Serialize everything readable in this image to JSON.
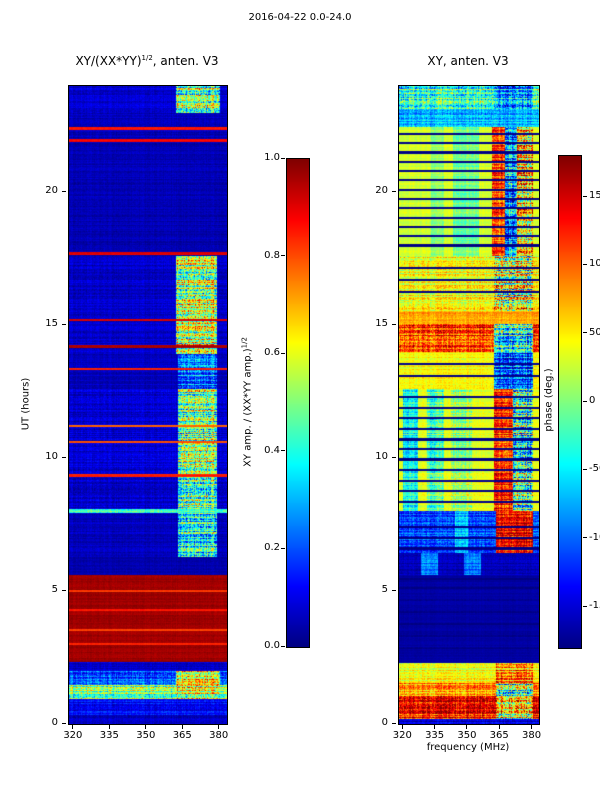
{
  "figure": {
    "title": "2016-04-22 0.0-24.0"
  },
  "chart_data": [
    {
      "type": "heatmap",
      "title_parts": {
        "pre": "XY/(XX*YY)",
        "sup": "1/2",
        "post": ", anten. V3"
      },
      "xlabel": "",
      "ylabel": "UT (hours)",
      "x_range": [
        318,
        383
      ],
      "y_range": [
        0,
        24
      ],
      "xticks": [
        320,
        335,
        350,
        365,
        380
      ],
      "xtick_labels": [
        "320",
        "335",
        "350",
        "365",
        "380"
      ],
      "yticks": [
        0,
        5,
        10,
        15,
        20
      ],
      "ytick_labels": [
        "0",
        "5",
        "10",
        "15",
        "20"
      ],
      "value_scale": {
        "min": 0,
        "max": 1
      },
      "colorbar": {
        "label_parts": {
          "pre": "XY amp. / (XX*YY amp.)",
          "sup": "1/2"
        },
        "range": [
          0,
          1
        ],
        "ticks": [
          1.0,
          0.8,
          0.6,
          0.4,
          0.2,
          0.0
        ],
        "tick_labels": [
          "1.0",
          "0.8",
          "0.6",
          "0.4",
          "0.2",
          "0.0"
        ]
      },
      "colormap": "jet",
      "bands": [
        {
          "t": [
            0,
            0.35
          ],
          "v": 0.07,
          "n": 0.05
        },
        {
          "t": [
            0.35,
            0.95
          ],
          "v": 0.12,
          "n": 0.08
        },
        {
          "t": [
            0.95,
            1.45
          ],
          "v": 0.5,
          "n": 0.22,
          "cols": [
            {
              "f": [
                362,
                380
              ],
              "v": 0.6,
              "n": 0.3
            }
          ]
        },
        {
          "t": [
            1.45,
            2.0
          ],
          "v": 0.22,
          "n": 0.15,
          "cols": [
            {
              "f": [
                362,
                380
              ],
              "v": 0.65,
              "n": 0.3
            }
          ]
        },
        {
          "t": [
            2.0,
            2.35
          ],
          "v": 0.08,
          "n": 0.05
        },
        {
          "t": [
            2.35,
            5.62
          ],
          "v": 0.97,
          "n": 0.025
        },
        {
          "t": [
            5.62,
            6.3
          ],
          "v": 0.05,
          "n": 0.03
        },
        {
          "t": [
            6.3,
            7.92
          ],
          "v": 0.06,
          "n": 0.04,
          "cols": [
            {
              "f": [
                363,
                379
              ],
              "v": 0.4,
              "n": 0.3
            }
          ]
        },
        {
          "t": [
            7.92,
            8.1
          ],
          "v": 0.45,
          "n": 0.12
        },
        {
          "t": [
            8.1,
            12.6
          ],
          "v": 0.08,
          "n": 0.06,
          "cols": [
            {
              "f": [
                363,
                379
              ],
              "v": 0.5,
              "n": 0.33
            }
          ]
        },
        {
          "t": [
            12.6,
            13.9
          ],
          "v": 0.06,
          "n": 0.04,
          "cols": [
            {
              "f": [
                363,
                379
              ],
              "v": 0.25,
              "n": 0.2
            }
          ]
        },
        {
          "t": [
            13.9,
            17.6
          ],
          "v": 0.07,
          "n": 0.05,
          "cols": [
            {
              "f": [
                362,
                379
              ],
              "v": 0.55,
              "n": 0.33
            }
          ]
        },
        {
          "t": [
            17.6,
            21.9
          ],
          "v": 0.05,
          "n": 0.035
        },
        {
          "t": [
            21.9,
            23.0
          ],
          "v": 0.06,
          "n": 0.04
        },
        {
          "t": [
            23.0,
            24.01
          ],
          "v": 0.08,
          "n": 0.05,
          "cols": [
            {
              "f": [
                362,
                380
              ],
              "v": 0.5,
              "n": 0.33
            }
          ]
        }
      ],
      "hlines": [
        [
          3.0,
          0.85
        ],
        [
          3.55,
          0.82
        ],
        [
          4.3,
          0.85
        ],
        [
          5.0,
          0.82
        ],
        [
          9.35,
          0.85
        ],
        [
          10.6,
          0.8
        ],
        [
          11.2,
          0.78
        ],
        [
          13.35,
          0.85
        ],
        [
          14.2,
          0.95
        ],
        [
          15.2,
          0.92
        ],
        [
          17.7,
          0.9
        ],
        [
          21.95,
          0.88
        ],
        [
          22.4,
          0.85
        ]
      ]
    },
    {
      "type": "heatmap",
      "title_parts": {
        "pre": "XY, anten. V3",
        "sup": "",
        "post": ""
      },
      "xlabel": "frequency (MHz)",
      "ylabel": "",
      "x_range": [
        318,
        383
      ],
      "y_range": [
        0,
        24
      ],
      "xticks": [
        320,
        335,
        350,
        365,
        380
      ],
      "xtick_labels": [
        "320",
        "335",
        "350",
        "365",
        "380"
      ],
      "yticks": [
        0,
        5,
        10,
        15,
        20
      ],
      "ytick_labels": [
        "0",
        "5",
        "10",
        "15",
        "20"
      ],
      "value_scale": {
        "min": -180,
        "max": 180
      },
      "colorbar": {
        "label_parts": {
          "pre": "phase (deg.)",
          "sup": ""
        },
        "range": [
          -180,
          180
        ],
        "ticks": [
          150,
          100,
          50,
          0,
          -50,
          -100,
          -150
        ],
        "tick_labels": [
          "150",
          "100",
          "50",
          "0",
          "-50",
          "-100",
          "-150"
        ]
      },
      "colormap": "jet",
      "bands": [
        {
          "t": [
            0,
            0.18
          ],
          "v": -150,
          "n": 30
        },
        {
          "t": [
            0.18,
            1.05
          ],
          "v": 130,
          "n": 70,
          "cols": [
            {
              "f": [
                363,
                380
              ],
              "v": 40,
              "n": 140
            }
          ]
        },
        {
          "t": [
            1.05,
            1.55
          ],
          "v": 85,
          "n": 55,
          "cols": [
            {
              "f": [
                363,
                380
              ],
              "v": 0,
              "n": 140
            }
          ]
        },
        {
          "t": [
            1.55,
            2.3
          ],
          "v": 40,
          "n": 35,
          "cols": [
            {
              "f": [
                363,
                380
              ],
              "v": 90,
              "n": 80
            }
          ]
        },
        {
          "t": [
            2.3,
            5.6
          ],
          "v": -168,
          "n": 6
        },
        {
          "t": [
            5.6,
            6.45
          ],
          "v": -160,
          "n": 15,
          "cols": [
            {
              "f": [
                328,
                336
              ],
              "v": -90,
              "n": 30
            },
            {
              "f": [
                348,
                356
              ],
              "v": -95,
              "n": 30
            }
          ]
        },
        {
          "t": [
            6.45,
            8.0
          ],
          "v": -110,
          "n": 45,
          "cols": [
            {
              "f": [
                344,
                350
              ],
              "v": -60,
              "n": 40
            },
            {
              "f": [
                363,
                380
              ],
              "v": 140,
              "n": 60
            }
          ]
        },
        {
          "t": [
            8.0,
            12.6
          ],
          "v": 35,
          "n": 18,
          "cols": [
            {
              "f": [
                320,
                327
              ],
              "v": -40,
              "n": 50
            },
            {
              "f": [
                331,
                339
              ],
              "v": -20,
              "n": 60
            },
            {
              "f": [
                342,
                352
              ],
              "v": 10,
              "n": 50
            },
            {
              "f": [
                362,
                371
              ],
              "v": 120,
              "n": 60
            },
            {
              "f": [
                371,
                380
              ],
              "v": -30,
              "n": 140
            }
          ]
        },
        {
          "t": [
            12.6,
            14.0
          ],
          "v": 45,
          "n": 25,
          "cols": [
            {
              "f": [
                362,
                380
              ],
              "v": -100,
              "n": 90
            }
          ]
        },
        {
          "t": [
            14.0,
            15.05
          ],
          "v": 110,
          "n": 70,
          "cols": [
            {
              "f": [
                362,
                380
              ],
              "v": -40,
              "n": 130
            }
          ]
        },
        {
          "t": [
            15.05,
            15.55
          ],
          "v": 75,
          "n": 25
        },
        {
          "t": [
            15.55,
            17.6
          ],
          "v": 40,
          "n": 45,
          "cols": [
            {
              "f": [
                362,
                380
              ],
              "v": 20,
              "n": 140
            }
          ]
        },
        {
          "t": [
            17.6,
            22.45
          ],
          "v": 30,
          "n": 14,
          "cols": [
            {
              "f": [
                333,
                339
              ],
              "v": 5,
              "n": 25
            },
            {
              "f": [
                343,
                355
              ],
              "v": -5,
              "n": 30
            },
            {
              "f": [
                361,
                367
              ],
              "v": 110,
              "n": 60
            },
            {
              "f": [
                367,
                373
              ],
              "v": -60,
              "n": 110
            },
            {
              "f": [
                373,
                380
              ],
              "v": 60,
              "n": 130
            }
          ]
        },
        {
          "t": [
            22.45,
            23.15
          ],
          "v": -70,
          "n": 45
        },
        {
          "t": [
            23.15,
            24.01
          ],
          "v": -30,
          "n": 90,
          "cols": [
            {
              "f": [
                362,
                380
              ],
              "v": -80,
              "n": 100
            }
          ]
        }
      ],
      "hlines": [
        [
          2.85,
          -178
        ],
        [
          3.3,
          -178
        ],
        [
          3.75,
          -178
        ],
        [
          4.2,
          -178
        ],
        [
          4.65,
          -178
        ],
        [
          5.1,
          -178
        ],
        [
          5.45,
          -178
        ],
        [
          6.6,
          -178
        ],
        [
          7.0,
          -178
        ],
        [
          7.4,
          -178
        ],
        [
          8.35,
          -178
        ],
        [
          8.75,
          -178
        ],
        [
          9.15,
          -178
        ],
        [
          9.55,
          -178
        ],
        [
          9.95,
          -178
        ],
        [
          10.35,
          -178
        ],
        [
          10.7,
          -178
        ],
        [
          11.1,
          -178
        ],
        [
          11.5,
          -178
        ],
        [
          11.9,
          -178
        ],
        [
          12.3,
          -178
        ],
        [
          13.1,
          -178
        ],
        [
          13.55,
          -178
        ],
        [
          16.25,
          -178
        ],
        [
          16.7,
          -178
        ],
        [
          17.15,
          -178
        ],
        [
          18.0,
          -178
        ],
        [
          18.35,
          -178
        ],
        [
          18.7,
          -178
        ],
        [
          19.05,
          -178
        ],
        [
          19.4,
          -178
        ],
        [
          19.75,
          -178
        ],
        [
          20.1,
          -178
        ],
        [
          20.45,
          -178
        ],
        [
          20.8,
          -178
        ],
        [
          21.15,
          -178
        ],
        [
          21.5,
          -178
        ],
        [
          21.85,
          -178
        ],
        [
          22.2,
          -178
        ]
      ]
    }
  ]
}
